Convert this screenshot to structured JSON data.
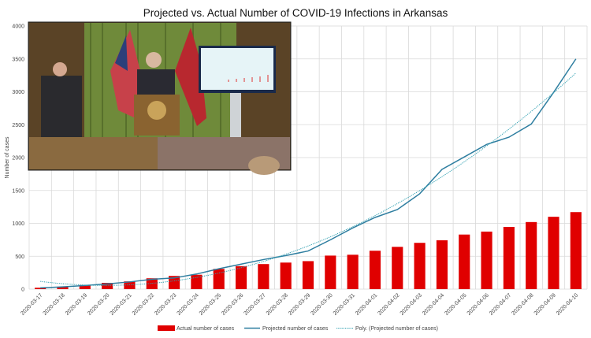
{
  "chart_data": {
    "type": "bar",
    "title": "Projected vs. Actual Number of COVID-19 Infections in Arkansas",
    "xlabel": "",
    "ylabel": "Number of cases",
    "ylim": [
      0,
      4000
    ],
    "yticks": [
      "0",
      "500",
      "1000",
      "1500",
      "2000",
      "2500",
      "3000",
      "3500",
      "4000"
    ],
    "grid": true,
    "legend_position": "bottom",
    "categories": [
      "2020-03-17",
      "2020-03-18",
      "2020-03-19",
      "2020-03-20",
      "2020-03-21",
      "2020-03-22",
      "2020-03-23",
      "2020-03-24",
      "2020-03-25",
      "2020-03-26",
      "2020-03-27",
      "2020-03-28",
      "2020-03-29",
      "2020-03-30",
      "2020-03-31",
      "2020-04-01",
      "2020-04-02",
      "2020-04-03",
      "2020-04-04",
      "2020-04-05",
      "2020-04-06",
      "2020-04-07",
      "2020-04-08",
      "2020-04-09",
      "2020-04-10"
    ],
    "series": [
      {
        "name": "Actual number of cases",
        "type": "bar",
        "color": "#e00000",
        "values": [
          22,
          33,
          62,
          96,
          118,
          165,
          201,
          219,
          308,
          350,
          381,
          404,
          426,
          510,
          523,
          584,
          643,
          704,
          743,
          830,
          875,
          946,
          1020,
          1100,
          1171
        ]
      },
      {
        "name": "Projected number of cases",
        "type": "line",
        "color": "#2e7ea0",
        "values": [
          20,
          35,
          55,
          80,
          110,
          150,
          170,
          230,
          310,
          380,
          450,
          510,
          580,
          750,
          930,
          1090,
          1210,
          1450,
          1820,
          2010,
          2200,
          2310,
          2510,
          2990,
          3500
        ]
      },
      {
        "name": "Poly. (Projected number of cases)",
        "type": "trendline",
        "style": "dotted",
        "color": "#2e9fb0",
        "order": 2
      }
    ]
  }
}
